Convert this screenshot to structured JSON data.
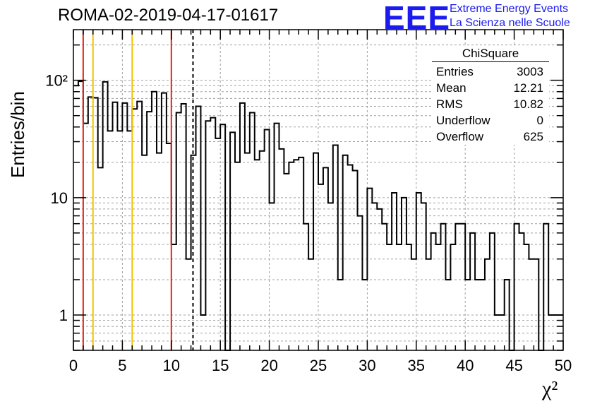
{
  "title": "ROMA-02-2019-04-17-01617",
  "logo": {
    "text": "EEE",
    "line1": "Extreme Energy Events",
    "line2": "La Scienza nelle Scuole",
    "color": "#1b1bf0"
  },
  "stats_box": {
    "name": "ChiSquare",
    "rows": [
      {
        "label": "Entries",
        "value": "3003"
      },
      {
        "label": "Mean",
        "value": "12.21"
      },
      {
        "label": "RMS",
        "value": "10.82"
      },
      {
        "label": "Underflow",
        "value": "0"
      },
      {
        "label": "Overflow",
        "value": "625"
      }
    ]
  },
  "chart_data": {
    "type": "histogram",
    "ylabel": "Entries/bin",
    "xlabel": "χ²",
    "xlim": [
      0,
      50
    ],
    "ylim": [
      0.5,
      270
    ],
    "y_scale": "log",
    "grid": true,
    "bin_width": 0.5,
    "x_ticks": [
      "0",
      "5",
      "10",
      "15",
      "20",
      "25",
      "30",
      "35",
      "40",
      "45",
      "50"
    ],
    "y_ticks": [
      {
        "v": 1,
        "label": "1"
      },
      {
        "v": 10,
        "label": "10"
      },
      {
        "v": 100,
        "label": "10²"
      }
    ],
    "counts": [
      90,
      98,
      43,
      72,
      71,
      18,
      97,
      37,
      65,
      37,
      64,
      37,
      57,
      66,
      23,
      54,
      80,
      24,
      78,
      29,
      4,
      53,
      63,
      3,
      23,
      60,
      1,
      45,
      48,
      32,
      42,
      0,
      36,
      20,
      64,
      24,
      53,
      21,
      25,
      38,
      9,
      43,
      26,
      16,
      20,
      21,
      22,
      6,
      3,
      24,
      13,
      18,
      9,
      28,
      2,
      23,
      19,
      17,
      7,
      2,
      12,
      9,
      8,
      6,
      4,
      11,
      4,
      10,
      4,
      3,
      11,
      9,
      3,
      5,
      4,
      6,
      2,
      4,
      6,
      6,
      2,
      5,
      2,
      2,
      3,
      5,
      1,
      1,
      2,
      0,
      6,
      5,
      4,
      3,
      3,
      0,
      6,
      1,
      1,
      1
    ],
    "vertical_lines": [
      {
        "x": 1,
        "color": "#e8221b",
        "style": "solid"
      },
      {
        "x": 2,
        "color": "#f5c400",
        "style": "solid"
      },
      {
        "x": 6,
        "color": "#f5c400",
        "style": "solid"
      },
      {
        "x": 10,
        "color": "#e8221b",
        "style": "solid"
      },
      {
        "x": 12.21,
        "color": "#000000",
        "style": "dashed"
      }
    ],
    "line_color": "#000000",
    "grid_color": "#a0a0a0"
  }
}
